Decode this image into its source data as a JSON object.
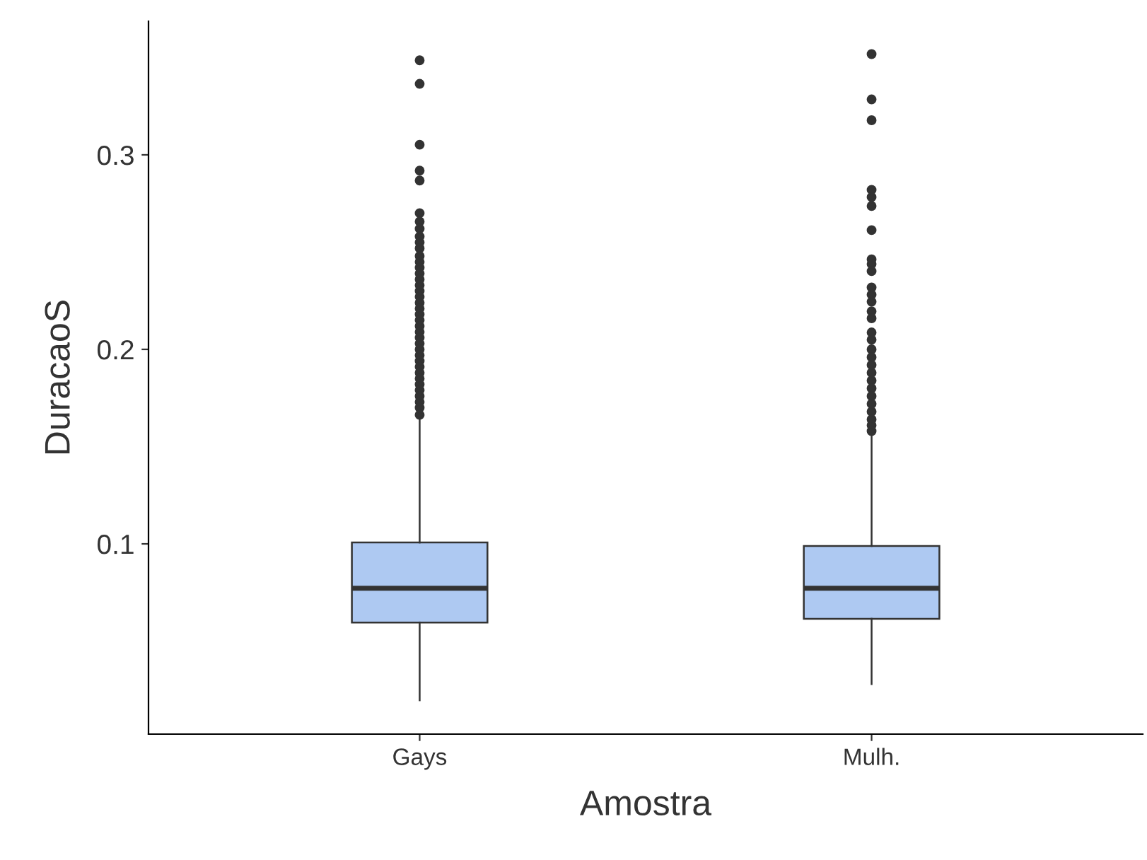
{
  "chart_data": {
    "type": "box",
    "xlabel": "Amostra",
    "ylabel": "DuracaoS",
    "categories": [
      "Gays",
      "Mulh."
    ],
    "ylim": [
      0.0022,
      0.3687
    ],
    "yticks": [
      0.1,
      0.2,
      0.3
    ],
    "grid": false,
    "marker": "circle",
    "series": [
      {
        "color": "#aec9f2",
        "boxes": [
          {
            "low": 0.0196,
            "q1": 0.0596,
            "median": 0.0772,
            "q3": 0.1007,
            "high": 0.1636,
            "outliers": [
              0.3486,
              0.3365,
              0.3052,
              0.2919,
              0.2868,
              0.27,
              0.2657,
              0.262,
              0.258,
              0.255,
              0.252,
              0.248,
              0.245,
              0.242,
              0.239,
              0.236,
              0.233,
              0.23,
              0.227,
              0.224,
              0.221,
              0.218,
              0.215,
              0.212,
              0.209,
              0.206,
              0.203,
              0.2,
              0.197,
              0.194,
              0.191,
              0.188,
              0.185,
              0.182,
              0.179,
              0.176,
              0.173,
              0.17,
              0.1663
            ]
          },
          {
            "low": 0.0279,
            "q1": 0.0615,
            "median": 0.0772,
            "q3": 0.0989,
            "high": 0.1564,
            "outliers": [
              0.3518,
              0.3285,
              0.3178,
              0.282,
              0.2783,
              0.2737,
              0.2613,
              0.2463,
              0.2439,
              0.2402,
              0.2318,
              0.2281,
              0.2245,
              0.2196,
              0.216,
              0.2087,
              0.205,
              0.2,
              0.196,
              0.192,
              0.188,
              0.184,
              0.18,
              0.176,
              0.172,
              0.168,
              0.164,
              0.161,
              0.158
            ]
          }
        ]
      }
    ]
  }
}
